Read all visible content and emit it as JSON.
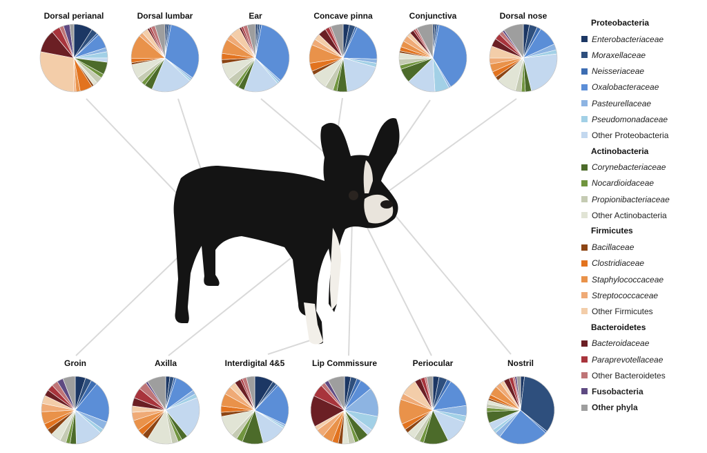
{
  "chart_data": {
    "type": "pie",
    "legend_placement": "right",
    "families": [
      {
        "key": "enterobacteriaceae",
        "label": "Enterobacteriaceae",
        "phylum": "Proteobacteria",
        "italic": true,
        "color": "#1c3764"
      },
      {
        "key": "moraxellaceae",
        "label": "Moraxellaceae",
        "phylum": "Proteobacteria",
        "italic": true,
        "color": "#2e4f7d"
      },
      {
        "key": "neisseriaceae",
        "label": "Neisseriaceae",
        "phylum": "Proteobacteria",
        "italic": true,
        "color": "#3d6db2"
      },
      {
        "key": "oxalobacteraceae",
        "label": "Oxalobacteraceae",
        "phylum": "Proteobacteria",
        "italic": true,
        "color": "#5b8ed7"
      },
      {
        "key": "pasteurellaceae",
        "label": "Pasteurellaceae",
        "phylum": "Proteobacteria",
        "italic": true,
        "color": "#8db4e2"
      },
      {
        "key": "pseudomonadaceae",
        "label": "Pseudomonadaceae",
        "phylum": "Proteobacteria",
        "italic": true,
        "color": "#a2d0e6"
      },
      {
        "key": "other_proteobacteria",
        "label": "Other Proteobacteria",
        "phylum": "Proteobacteria",
        "italic": false,
        "color": "#c3d8ef"
      },
      {
        "key": "corynebacteriaceae",
        "label": "Corynebacteriaceae",
        "phylum": "Actinobacteria",
        "italic": true,
        "color": "#4c6b2a"
      },
      {
        "key": "nocardioidaceae",
        "label": "Nocardioidaceae",
        "phylum": "Actinobacteria",
        "italic": true,
        "color": "#71953f"
      },
      {
        "key": "propionibacteriaceae",
        "label": "Propionibacteriaceae",
        "phylum": "Actinobacteria",
        "italic": true,
        "color": "#c5cbb3"
      },
      {
        "key": "other_actinobacteria",
        "label": "Other Actinobacteria",
        "phylum": "Actinobacteria",
        "italic": false,
        "color": "#e1e4d5"
      },
      {
        "key": "bacillaceae",
        "label": "Bacillaceae",
        "phylum": "Firmicutes",
        "italic": true,
        "color": "#8c4514"
      },
      {
        "key": "clostridiaceae",
        "label": "Clostridiaceae",
        "phylum": "Firmicutes",
        "italic": true,
        "color": "#e2731f"
      },
      {
        "key": "staphylococcaceae",
        "label": "Staphylococcaceae",
        "phylum": "Firmicutes",
        "italic": true,
        "color": "#e9924a"
      },
      {
        "key": "streptococcaceae",
        "label": "Streptococcaceae",
        "phylum": "Firmicutes",
        "italic": true,
        "color": "#efaa76"
      },
      {
        "key": "other_firmicutes",
        "label": "Other Firmicutes",
        "phylum": "Firmicutes",
        "italic": false,
        "color": "#f3cda9"
      },
      {
        "key": "bacteroidaceae",
        "label": "Bacteroidaceae",
        "phylum": "Bacteroidetes",
        "italic": true,
        "color": "#6b1f24"
      },
      {
        "key": "paraprevotellaceae",
        "label": "Paraprevotellaceae",
        "phylum": "Bacteroidetes",
        "italic": true,
        "color": "#a8343c"
      },
      {
        "key": "other_bacteroidetes",
        "label": "Other Bacteroidetes",
        "phylum": "Bacteroidetes",
        "italic": false,
        "color": "#bf7577"
      },
      {
        "key": "fusobacteria",
        "label": "Fusobacteria",
        "phylum": "Fusobacteria",
        "italic": false,
        "bold": true,
        "color": "#5e4a82"
      },
      {
        "key": "other_phyla",
        "label": "Other phyla",
        "phylum": "Other phyla",
        "italic": false,
        "bold": true,
        "color": "#9e9e9e"
      }
    ],
    "legend": [
      {
        "heading": "Proteobacteria",
        "items": [
          "enterobacteriaceae",
          "moraxellaceae",
          "neisseriaceae",
          "oxalobacteraceae",
          "pasteurellaceae",
          "pseudomonadaceae",
          "other_proteobacteria"
        ]
      },
      {
        "heading": "Actinobacteria",
        "items": [
          "corynebacteriaceae",
          "nocardioidaceae",
          "propionibacteriaceae",
          "other_actinobacteria"
        ]
      },
      {
        "heading": "Firmicutes",
        "items": [
          "bacillaceae",
          "clostridiaceae",
          "staphylococcaceae",
          "streptococcaceae",
          "other_firmicutes"
        ]
      },
      {
        "heading": "Bacteroidetes",
        "items": [
          "bacteroidaceae",
          "paraprevotellaceae",
          "other_bacteroidetes"
        ]
      },
      {
        "heading": null,
        "items": [
          "fusobacteria",
          "other_phyla"
        ]
      }
    ],
    "pies": [
      {
        "title": "Dorsal perianal",
        "values": {
          "enterobacteriaceae": 9,
          "moraxellaceae": 3,
          "neisseriaceae": 1,
          "oxalobacteraceae": 7,
          "pasteurellaceae": 2,
          "pseudomonadaceae": 3,
          "other_proteobacteria": 2,
          "corynebacteriaceae": 6,
          "nocardioidaceae": 2,
          "propionibacteriaceae": 3,
          "other_actinobacteria": 2,
          "bacillaceae": 1,
          "clostridiaceae": 6,
          "staphylococcaceae": 2,
          "streptococcaceae": 1,
          "other_firmicutes": 28,
          "bacteroidaceae": 11,
          "paraprevotellaceae": 4,
          "other_bacteroidetes": 2,
          "fusobacteria": 3,
          "other_phyla": 2
        }
      },
      {
        "title": "Dorsal lumbar",
        "values": {
          "enterobacteriaceae": 1,
          "moraxellaceae": 1,
          "neisseriaceae": 1,
          "oxalobacteraceae": 33,
          "pasteurellaceae": 1,
          "pseudomonadaceae": 1,
          "other_proteobacteria": 20,
          "corynebacteriaceae": 4,
          "nocardioidaceae": 2,
          "propionibacteriaceae": 3,
          "other_actinobacteria": 7,
          "bacillaceae": 1,
          "clostridiaceae": 2,
          "staphylococcaceae": 12,
          "streptococcaceae": 2,
          "other_firmicutes": 3,
          "bacteroidaceae": 1,
          "paraprevotellaceae": 1,
          "other_bacteroidetes": 2,
          "fusobacteria": 0,
          "other_phyla": 5
        }
      },
      {
        "title": "Ear",
        "values": {
          "enterobacteriaceae": 1,
          "moraxellaceae": 1,
          "neisseriaceae": 1,
          "oxalobacteraceae": 34,
          "pasteurellaceae": 1,
          "pseudomonadaceae": 1,
          "other_proteobacteria": 17,
          "corynebacteriaceae": 3,
          "nocardioidaceae": 2,
          "propionibacteriaceae": 4,
          "other_actinobacteria": 8,
          "bacillaceae": 2,
          "clostridiaceae": 3,
          "staphylococcaceae": 7,
          "streptococcaceae": 3,
          "other_firmicutes": 5,
          "bacteroidaceae": 1,
          "paraprevotellaceae": 1,
          "other_bacteroidetes": 2,
          "fusobacteria": 0,
          "other_phyla": 4
        }
      },
      {
        "title": "Concave pinna",
        "values": {
          "enterobacteriaceae": 3,
          "moraxellaceae": 3,
          "neisseriaceae": 1,
          "oxalobacteraceae": 19,
          "pasteurellaceae": 2,
          "pseudomonadaceae": 2,
          "other_proteobacteria": 19,
          "corynebacteriaceae": 5,
          "nocardioidaceae": 2,
          "propionibacteriaceae": 4,
          "other_actinobacteria": 8,
          "bacillaceae": 2,
          "clostridiaceae": 4,
          "staphylococcaceae": 9,
          "streptococcaceae": 3,
          "other_firmicutes": 3,
          "bacteroidaceae": 4,
          "paraprevotellaceae": 2,
          "other_bacteroidetes": 1,
          "fusobacteria": 0,
          "other_phyla": 6
        }
      },
      {
        "title": "Conjunctiva",
        "values": {
          "enterobacteriaceae": 1,
          "moraxellaceae": 1,
          "neisseriaceae": 1,
          "oxalobacteraceae": 39,
          "pasteurellaceae": 1,
          "pseudomonadaceae": 7,
          "other_proteobacteria": 14,
          "corynebacteriaceae": 7,
          "nocardioidaceae": 2,
          "propionibacteriaceae": 3,
          "other_actinobacteria": 3,
          "bacillaceae": 1,
          "clostridiaceae": 2,
          "staphylococcaceae": 3,
          "streptococcaceae": 3,
          "other_firmicutes": 2,
          "bacteroidaceae": 2,
          "paraprevotellaceae": 1,
          "other_bacteroidetes": 1,
          "fusobacteria": 0,
          "other_phyla": 8
        }
      },
      {
        "title": "Dorsal nose",
        "values": {
          "enterobacteriaceae": 3,
          "moraxellaceae": 4,
          "neisseriaceae": 2,
          "oxalobacteraceae": 10,
          "pasteurellaceae": 3,
          "pseudomonadaceae": 2,
          "other_proteobacteria": 24,
          "corynebacteriaceae": 3,
          "nocardioidaceae": 2,
          "propionibacteriaceae": 3,
          "other_actinobacteria": 10,
          "bacillaceae": 2,
          "clostridiaceae": 3,
          "staphylococcaceae": 4,
          "streptococcaceae": 3,
          "other_firmicutes": 6,
          "bacteroidaceae": 4,
          "paraprevotellaceae": 3,
          "other_bacteroidetes": 2,
          "fusobacteria": 1,
          "other_phyla": 10
        }
      },
      {
        "title": "Groin",
        "values": {
          "enterobacteriaceae": 5,
          "moraxellaceae": 3,
          "neisseriaceae": 3,
          "oxalobacteraceae": 20,
          "pasteurellaceae": 4,
          "pseudomonadaceae": 2,
          "other_proteobacteria": 13,
          "corynebacteriaceae": 3,
          "nocardioidaceae": 2,
          "propionibacteriaceae": 3,
          "other_actinobacteria": 5,
          "bacillaceae": 3,
          "clostridiaceae": 3,
          "staphylococcaceae": 6,
          "streptococcaceae": 4,
          "other_firmicutes": 4,
          "bacteroidaceae": 3,
          "paraprevotellaceae": 3,
          "other_bacteroidetes": 3,
          "fusobacteria": 3,
          "other_phyla": 6
        }
      },
      {
        "title": "Axilla",
        "values": {
          "enterobacteriaceae": 2,
          "moraxellaceae": 2,
          "neisseriaceae": 1,
          "oxalobacteraceae": 10,
          "pasteurellaceae": 2,
          "pseudomonadaceae": 2,
          "other_proteobacteria": 20,
          "corynebacteriaceae": 3,
          "nocardioidaceae": 2,
          "propionibacteriaceae": 3,
          "other_actinobacteria": 12,
          "bacillaceae": 3,
          "clostridiaceae": 3,
          "staphylococcaceae": 5,
          "streptococcaceae": 4,
          "other_firmicutes": 3,
          "bacteroidaceae": 4,
          "paraprevotellaceae": 5,
          "other_bacteroidetes": 4,
          "fusobacteria": 1,
          "other_phyla": 9
        }
      },
      {
        "title": "Interdigital 4&5",
        "values": {
          "enterobacteriaceae": 9,
          "moraxellaceae": 2,
          "neisseriaceae": 1,
          "oxalobacteraceae": 20,
          "pasteurellaceae": 1,
          "pseudomonadaceae": 1,
          "other_proteobacteria": 12,
          "corynebacteriaceae": 10,
          "nocardioidaceae": 3,
          "propionibacteriaceae": 3,
          "other_actinobacteria": 10,
          "bacillaceae": 2,
          "clostridiaceae": 3,
          "staphylococcaceae": 6,
          "streptococcaceae": 4,
          "other_firmicutes": 3,
          "bacteroidaceae": 3,
          "paraprevotellaceae": 1,
          "other_bacteroidetes": 2,
          "fusobacteria": 0,
          "other_phyla": 4
        }
      },
      {
        "title": "Lip Commissure",
        "values": {
          "enterobacteriaceae": 3,
          "moraxellaceae": 3,
          "neisseriaceae": 2,
          "oxalobacteraceae": 6,
          "pasteurellaceae": 14,
          "pseudomonadaceae": 7,
          "other_proteobacteria": 3,
          "corynebacteriaceae": 5,
          "nocardioidaceae": 2,
          "propionibacteriaceae": 3,
          "other_actinobacteria": 3,
          "bacillaceae": 2,
          "clostridiaceae": 3,
          "staphylococcaceae": 5,
          "streptococcaceae": 4,
          "other_firmicutes": 2,
          "bacteroidaceae": 15,
          "paraprevotellaceae": 6,
          "other_bacteroidetes": 2,
          "fusobacteria": 2,
          "other_phyla": 8
        }
      },
      {
        "title": "Periocular",
        "values": {
          "enterobacteriaceae": 3,
          "moraxellaceae": 4,
          "neisseriaceae": 2,
          "oxalobacteraceae": 14,
          "pasteurellaceae": 5,
          "pseudomonadaceae": 3,
          "other_proteobacteria": 12,
          "corynebacteriaceae": 12,
          "nocardioidaceae": 2,
          "propionibacteriaceae": 3,
          "other_actinobacteria": 4,
          "bacillaceae": 2,
          "clostridiaceae": 3,
          "staphylococcaceae": 12,
          "streptococcaceae": 3,
          "other_firmicutes": 8,
          "bacteroidaceae": 3,
          "paraprevotellaceae": 2,
          "other_bacteroidetes": 1,
          "fusobacteria": 0,
          "other_phyla": 3
        }
      },
      {
        "title": "Nostril",
        "values": {
          "enterobacteriaceae": 2,
          "moraxellaceae": 37,
          "neisseriaceae": 1,
          "oxalobacteraceae": 26,
          "pasteurellaceae": 3,
          "pseudomonadaceae": 2,
          "other_proteobacteria": 4,
          "corynebacteriaceae": 6,
          "nocardioidaceae": 2,
          "propionibacteriaceae": 2,
          "other_actinobacteria": 2,
          "bacillaceae": 1,
          "clostridiaceae": 2,
          "staphylococcaceae": 5,
          "streptococcaceae": 3,
          "other_firmicutes": 2,
          "bacteroidaceae": 3,
          "paraprevotellaceae": 2,
          "other_bacteroidetes": 1,
          "fusobacteria": 1,
          "other_phyla": 2
        }
      }
    ]
  }
}
